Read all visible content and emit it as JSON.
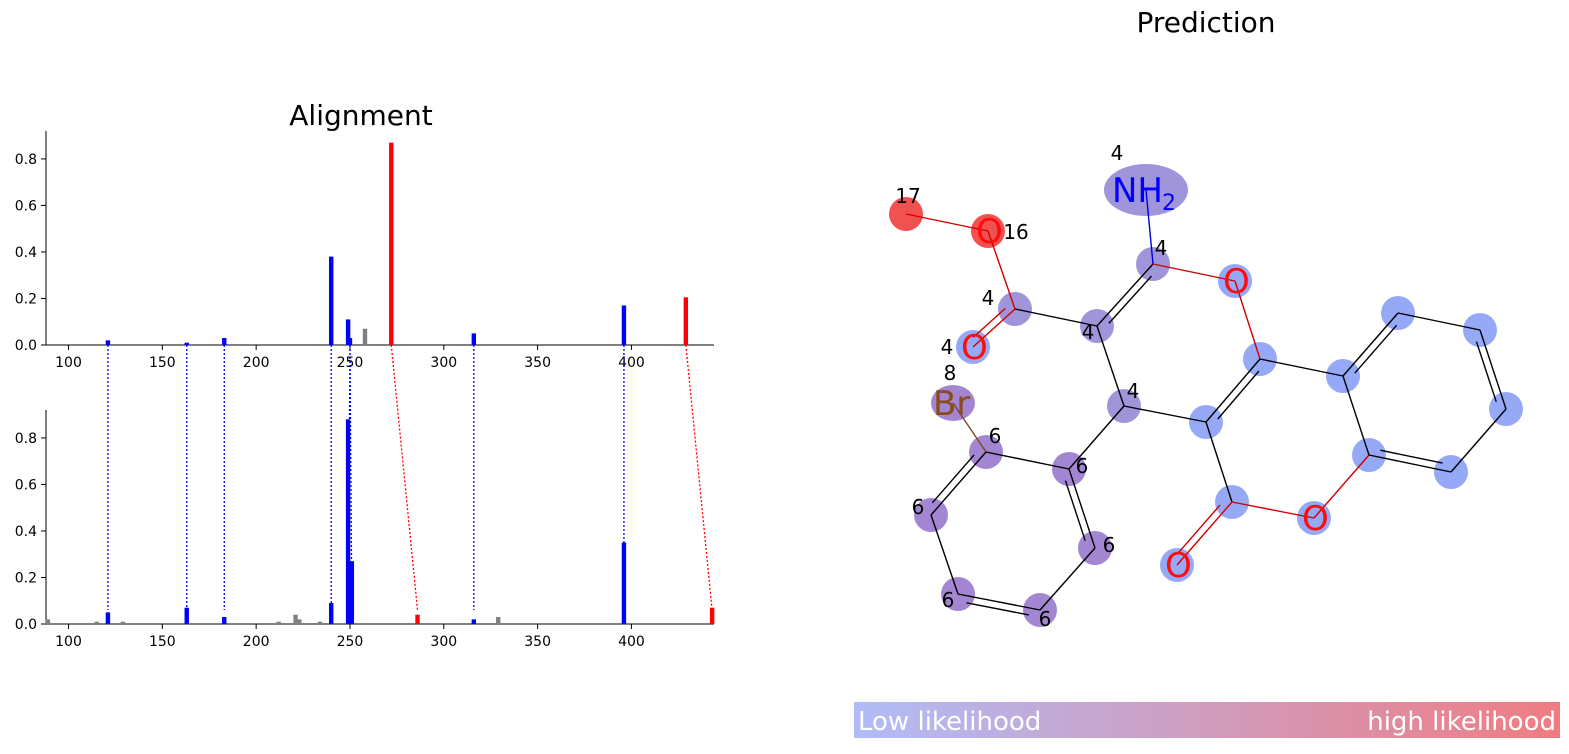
{
  "alignment": {
    "title": "Alignment",
    "xlim": [
      88,
      444
    ],
    "ylim": [
      0,
      0.92
    ],
    "xticks": [
      100,
      150,
      200,
      250,
      300,
      350,
      400
    ],
    "yticks": [
      0.0,
      0.2,
      0.4,
      0.6,
      0.8
    ],
    "colors": {
      "matched": "#0000ff",
      "unmatched": "#808080",
      "shifted": "#ff0000"
    }
  },
  "chart_data": [
    {
      "type": "bar",
      "panel": "top",
      "title": "Alignment",
      "xlabel": "",
      "ylabel": "",
      "xlim": [
        88,
        444
      ],
      "ylim": [
        0,
        0.92
      ],
      "peaks": [
        {
          "x": 121,
          "y": 0.02,
          "kind": "matched"
        },
        {
          "x": 163,
          "y": 0.01,
          "kind": "matched"
        },
        {
          "x": 183,
          "y": 0.03,
          "kind": "matched"
        },
        {
          "x": 240,
          "y": 0.38,
          "kind": "matched"
        },
        {
          "x": 249,
          "y": 0.11,
          "kind": "matched"
        },
        {
          "x": 250,
          "y": 0.03,
          "kind": "matched"
        },
        {
          "x": 258,
          "y": 0.07,
          "kind": "unmatched"
        },
        {
          "x": 272,
          "y": 0.87,
          "kind": "shifted"
        },
        {
          "x": 316,
          "y": 0.05,
          "kind": "matched"
        },
        {
          "x": 396,
          "y": 0.17,
          "kind": "matched"
        },
        {
          "x": 429,
          "y": 0.205,
          "kind": "shifted"
        }
      ]
    },
    {
      "type": "bar",
      "panel": "bottom",
      "xlabel": "",
      "ylabel": "",
      "xlim": [
        88,
        444
      ],
      "ylim": [
        0,
        0.92
      ],
      "peaks": [
        {
          "x": 89,
          "y": 0.02,
          "kind": "unmatched"
        },
        {
          "x": 115,
          "y": 0.01,
          "kind": "unmatched"
        },
        {
          "x": 121,
          "y": 0.05,
          "kind": "matched"
        },
        {
          "x": 129,
          "y": 0.01,
          "kind": "unmatched"
        },
        {
          "x": 163,
          "y": 0.07,
          "kind": "matched"
        },
        {
          "x": 183,
          "y": 0.03,
          "kind": "matched"
        },
        {
          "x": 212,
          "y": 0.01,
          "kind": "unmatched"
        },
        {
          "x": 221,
          "y": 0.04,
          "kind": "unmatched"
        },
        {
          "x": 223,
          "y": 0.02,
          "kind": "unmatched"
        },
        {
          "x": 234,
          "y": 0.01,
          "kind": "unmatched"
        },
        {
          "x": 240,
          "y": 0.09,
          "kind": "matched"
        },
        {
          "x": 249,
          "y": 0.88,
          "kind": "matched"
        },
        {
          "x": 251,
          "y": 0.27,
          "kind": "matched"
        },
        {
          "x": 286,
          "y": 0.04,
          "kind": "shifted"
        },
        {
          "x": 316,
          "y": 0.02,
          "kind": "matched"
        },
        {
          "x": 329,
          "y": 0.03,
          "kind": "unmatched"
        },
        {
          "x": 396,
          "y": 0.35,
          "kind": "matched"
        },
        {
          "x": 443,
          "y": 0.07,
          "kind": "shifted"
        }
      ]
    }
  ],
  "alignment_links": [
    {
      "top": 121,
      "bottom": 121,
      "kind": "matched"
    },
    {
      "top": 163,
      "bottom": 163,
      "kind": "matched"
    },
    {
      "top": 183,
      "bottom": 183,
      "kind": "matched"
    },
    {
      "top": 240,
      "bottom": 240,
      "kind": "matched"
    },
    {
      "top": 250,
      "bottom": 249,
      "kind": "matched"
    },
    {
      "top": 250,
      "bottom": 251,
      "kind": "matched"
    },
    {
      "top": 272,
      "bottom": 286,
      "kind": "shifted"
    },
    {
      "top": 316,
      "bottom": 316,
      "kind": "matched"
    },
    {
      "top": 396,
      "bottom": 396,
      "kind": "matched"
    },
    {
      "top": 429,
      "bottom": 443,
      "kind": "shifted"
    }
  ],
  "prediction": {
    "title": "Prediction",
    "colorbar": {
      "low_label": "Low likelihood",
      "high_label": "high likelihood",
      "low_color": "#b0bcf8",
      "high_color": "#f07c82"
    },
    "atom_colors": {
      "blue": "#8fa4f5",
      "purple": "#9b8fd9",
      "violet": "#9d7fcf",
      "red": "#f04848"
    },
    "atoms": [
      {
        "id": "a17",
        "label": "",
        "tag": "17",
        "color": "red"
      },
      {
        "id": "a16",
        "label": "O",
        "tag": "16",
        "color": "red"
      },
      {
        "id": "aN",
        "label": "NH",
        "sub": "2",
        "tag": "4",
        "color": "purple"
      },
      {
        "id": "c1",
        "label": "",
        "tag": "4",
        "color": "purple"
      },
      {
        "id": "oR",
        "label": "O",
        "tag": "",
        "color": "blue"
      },
      {
        "id": "cE",
        "label": "",
        "tag": "4",
        "color": "purple"
      },
      {
        "id": "oE",
        "label": "O",
        "tag": "4",
        "color": "blue"
      },
      {
        "id": "c2",
        "label": "",
        "tag": "4",
        "color": "purple"
      },
      {
        "id": "c3",
        "label": "",
        "tag": "4",
        "color": "purple"
      },
      {
        "id": "br",
        "label": "Br",
        "tag": "8",
        "color": "violet"
      },
      {
        "id": "p1",
        "label": "",
        "tag": "6",
        "color": "violet"
      },
      {
        "id": "p2",
        "label": "",
        "tag": "6",
        "color": "violet"
      },
      {
        "id": "p3",
        "label": "",
        "tag": "6",
        "color": "violet"
      },
      {
        "id": "p4",
        "label": "",
        "tag": "6",
        "color": "violet"
      },
      {
        "id": "p5",
        "label": "",
        "tag": "6",
        "color": "violet"
      },
      {
        "id": "p6",
        "label": "",
        "tag": "6",
        "color": "violet"
      },
      {
        "id": "c4",
        "label": "",
        "tag": "",
        "color": "blue"
      },
      {
        "id": "c5",
        "label": "",
        "tag": "",
        "color": "blue"
      },
      {
        "id": "c6",
        "label": "",
        "tag": "",
        "color": "blue"
      },
      {
        "id": "oL",
        "label": "O",
        "tag": "",
        "color": "blue"
      },
      {
        "id": "oR2",
        "label": "O",
        "tag": "",
        "color": "blue"
      },
      {
        "id": "b1",
        "label": "",
        "tag": "",
        "color": "blue"
      },
      {
        "id": "b2",
        "label": "",
        "tag": "",
        "color": "blue"
      },
      {
        "id": "b3",
        "label": "",
        "tag": "",
        "color": "blue"
      },
      {
        "id": "b4",
        "label": "",
        "tag": "",
        "color": "blue"
      },
      {
        "id": "b5",
        "label": "",
        "tag": "",
        "color": "blue"
      },
      {
        "id": "b6",
        "label": "",
        "tag": "",
        "color": "blue"
      }
    ]
  }
}
